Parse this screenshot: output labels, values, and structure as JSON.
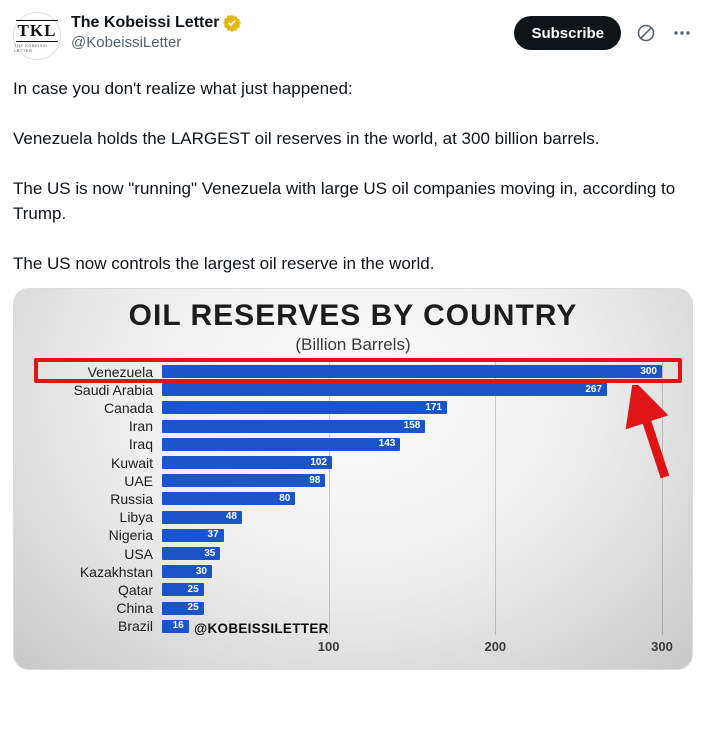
{
  "header": {
    "display_name": "The Kobeissi Letter",
    "handle": "@KobeissiLetter",
    "avatar_text": "TKL",
    "avatar_subtext": "THE KOBEISSI LETTER",
    "subscribe_label": "Subscribe",
    "badge_color": "#e2b719"
  },
  "tweet": {
    "paragraphs": [
      "In case you don't realize what just happened:",
      "Venezuela holds the LARGEST oil reserves in the world, at 300 billion barrels.",
      "The US is now \"running\" Venezuela with large US oil companies moving in, according to Trump.",
      "The US now controls the largest oil reserve in the world."
    ]
  },
  "chart_data": {
    "type": "bar",
    "orientation": "horizontal",
    "title": "OIL RESERVES BY COUNTRY",
    "subtitle": "(Billion Barrels)",
    "categories": [
      "Venezuela",
      "Saudi Arabia",
      "Canada",
      "Iran",
      "Iraq",
      "Kuwait",
      "UAE",
      "Russia",
      "Libya",
      "Nigeria",
      "USA",
      "Kazakhstan",
      "Qatar",
      "China",
      "Brazil"
    ],
    "values": [
      300,
      267,
      171,
      158,
      143,
      102,
      98,
      80,
      48,
      37,
      35,
      30,
      25,
      25,
      16
    ],
    "xlim": [
      0,
      300
    ],
    "x_ticks": [
      100,
      200,
      300
    ],
    "grid": true,
    "legend": false,
    "bar_color": "#1b54c8",
    "value_label_color": "#ffffff",
    "highlight": {
      "category": "Venezuela",
      "color": "#df1515",
      "annotation": "red box and arrow"
    },
    "watermark": "@KOBEISSILETTER"
  }
}
